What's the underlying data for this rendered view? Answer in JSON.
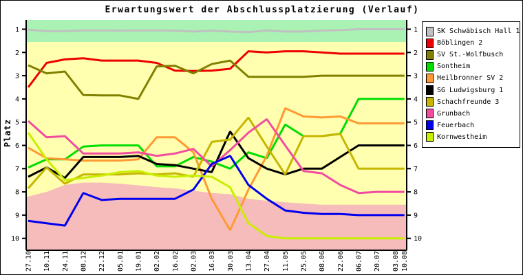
{
  "title": "Erwartungswert der Abschlussplatzierung (Verlauf)",
  "y_axis": {
    "label": "Platz",
    "ticks": [
      1,
      2,
      3,
      4,
      5,
      6,
      7,
      8,
      9,
      10
    ]
  },
  "x_axis": {
    "labels": [
      "27.10",
      "10.11",
      "24.11",
      "08.12",
      "22.12",
      "05.01",
      "19.01",
      "02.02",
      "16.02",
      "02.03",
      "16.03",
      "30.03",
      "13.04",
      "27.04",
      "11.05",
      "25.05",
      "08.06",
      "22.06",
      "06.07",
      "20.07",
      "03.08",
      "10.08"
    ]
  },
  "chart_data": {
    "type": "line",
    "title": "Erwartungswert der Abschlussplatzierung (Verlauf)",
    "ylabel": "Platz",
    "y_range": [
      0.6,
      10.5
    ],
    "y_inverted": true,
    "grid": false,
    "legend_position": "right",
    "x_categories": [
      "27.10",
      "10.11",
      "24.11",
      "08.12",
      "22.12",
      "05.01",
      "19.01",
      "02.02",
      "16.02",
      "02.03",
      "16.03",
      "30.03",
      "13.04",
      "27.04",
      "11.05",
      "25.05",
      "08.06",
      "22.06",
      "06.07",
      "20.07",
      "03.08",
      "10.08"
    ],
    "x_day_offsets": [
      0,
      14,
      28,
      42,
      56,
      70,
      84,
      98,
      112,
      126,
      140,
      154,
      168,
      182,
      196,
      210,
      224,
      238,
      252,
      266,
      280,
      287
    ],
    "bands": {
      "top_zone": {
        "color": "#A9F2B3",
        "from_platz": 0.6,
        "to_platz": 1.55
      },
      "middle_zone": {
        "color": "#FFFFAF",
        "from_platz": 1.55,
        "to_platz": 10.5
      },
      "bottom_zone": {
        "color": "#F6BBBB",
        "boundary_platz": [
          8.2,
          8.0,
          7.7,
          7.6,
          7.6,
          7.65,
          7.72,
          7.8,
          7.85,
          7.95,
          8.05,
          8.1,
          8.3,
          8.38,
          8.45,
          8.5,
          8.55,
          8.55,
          8.55,
          8.55,
          8.55,
          8.55
        ]
      }
    },
    "series": [
      {
        "name": "SK Schwäbisch Hall 1",
        "color": "#C0C0C0",
        "values": [
          1.02,
          1.08,
          1.08,
          1.05,
          1.05,
          1.06,
          1.05,
          1.05,
          1.06,
          1.1,
          1.06,
          1.1,
          1.12,
          1.05,
          1.1,
          1.1,
          1.06,
          1.04,
          1.0,
          1.0,
          1.0,
          1.0
        ]
      },
      {
        "name": "Böblingen 2",
        "color": "#EE0000",
        "values": [
          3.5,
          2.45,
          2.3,
          2.25,
          2.35,
          2.35,
          2.35,
          2.45,
          2.78,
          2.8,
          2.78,
          2.7,
          1.95,
          2.0,
          1.95,
          1.95,
          2.0,
          2.05,
          2.05,
          2.05,
          2.05,
          2.05
        ]
      },
      {
        "name": "SV St.-Wolfbusch",
        "color": "#808000",
        "values": [
          2.55,
          2.9,
          2.82,
          3.83,
          3.85,
          3.85,
          4.0,
          2.6,
          2.57,
          2.9,
          2.5,
          2.35,
          3.05,
          3.05,
          3.05,
          3.05,
          3.0,
          3.0,
          3.0,
          3.0,
          3.0,
          3.0
        ]
      },
      {
        "name": "Sontheim",
        "color": "#00DD00",
        "values": [
          6.95,
          6.6,
          6.6,
          6.05,
          6.0,
          6.0,
          6.0,
          6.9,
          6.9,
          6.5,
          6.7,
          7.0,
          6.3,
          6.55,
          5.1,
          5.6,
          5.6,
          5.5,
          4.0,
          4.0,
          4.0,
          4.0
        ]
      },
      {
        "name": "Heilbronner SV 2",
        "color": "#FF9933",
        "values": [
          6.1,
          6.55,
          6.6,
          6.65,
          6.65,
          6.65,
          6.6,
          5.65,
          5.65,
          6.3,
          8.3,
          9.65,
          7.9,
          6.45,
          4.4,
          4.75,
          4.8,
          4.75,
          5.05,
          5.05,
          5.05,
          5.05
        ]
      },
      {
        "name": "SG Ludwigsburg 1",
        "color": "#000000",
        "values": [
          7.35,
          6.95,
          7.4,
          6.5,
          6.5,
          6.5,
          6.45,
          6.8,
          6.85,
          7.0,
          7.15,
          5.4,
          6.55,
          7.0,
          7.25,
          7.0,
          7.0,
          6.5,
          6.0,
          6.0,
          6.0,
          6.0
        ]
      },
      {
        "name": "Schachfreunde 3",
        "color": "#C6B600",
        "values": [
          7.85,
          6.95,
          7.65,
          7.25,
          7.25,
          7.25,
          7.2,
          7.25,
          7.2,
          7.35,
          5.85,
          5.75,
          4.8,
          6.05,
          7.25,
          5.6,
          5.6,
          5.5,
          7.0,
          7.0,
          7.0,
          7.0
        ]
      },
      {
        "name": "Grunbach",
        "color": "#F24CA0",
        "values": [
          4.95,
          5.65,
          5.6,
          6.35,
          6.35,
          6.35,
          6.3,
          6.45,
          6.35,
          6.15,
          6.9,
          6.2,
          5.45,
          4.87,
          6.0,
          7.1,
          7.2,
          7.7,
          8.05,
          8.0,
          8.0,
          8.0
        ]
      },
      {
        "name": "Feuerbach",
        "color": "#0000EE",
        "values": [
          9.25,
          9.35,
          9.45,
          8.05,
          8.35,
          8.3,
          8.3,
          8.3,
          8.3,
          7.9,
          6.8,
          6.45,
          7.7,
          8.3,
          8.8,
          8.9,
          8.95,
          8.95,
          9.0,
          9.0,
          9.0,
          9.0
        ]
      },
      {
        "name": "Kornwestheim",
        "color": "#C8EE00",
        "values": [
          5.45,
          6.6,
          7.5,
          7.4,
          7.3,
          7.15,
          7.1,
          7.3,
          7.35,
          7.3,
          7.35,
          7.8,
          9.35,
          9.9,
          10.0,
          10.0,
          10.0,
          10.0,
          10.0,
          10.0,
          10.0,
          10.0
        ]
      }
    ]
  }
}
